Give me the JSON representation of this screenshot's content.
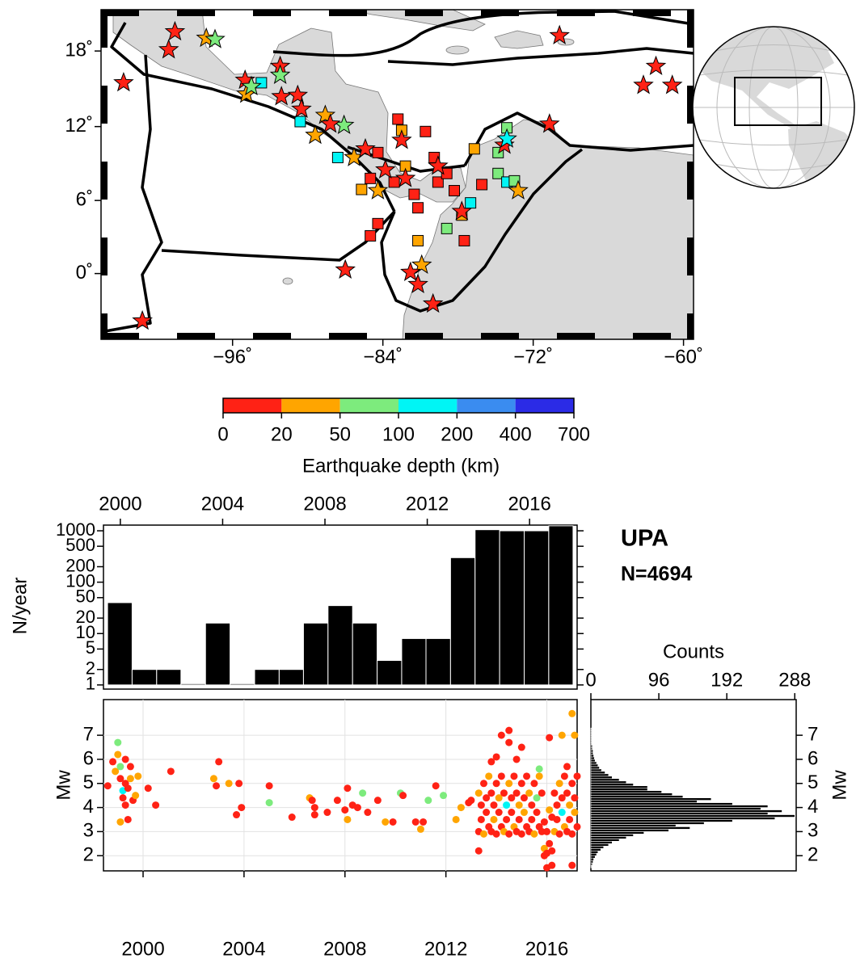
{
  "chart_data": [
    {
      "type": "map",
      "projection": "mercator",
      "xlim": [
        -106.5,
        -59.2
      ],
      "ylim": [
        -5.4,
        21.2
      ],
      "xticks": [
        {
          "value": -96,
          "label": "−96˚"
        },
        {
          "value": -84,
          "label": "−84˚"
        },
        {
          "value": -72,
          "label": "−72˚"
        },
        {
          "value": -60,
          "label": "−60˚"
        }
      ],
      "yticks": [
        {
          "value": 18,
          "label": "18˚"
        },
        {
          "value": 12,
          "label": "12˚"
        },
        {
          "value": 6,
          "label": "6˚"
        },
        {
          "value": 0,
          "label": "0˚"
        }
      ],
      "events": {
        "lon": [
          -100.6,
          -101.1,
          -98.1,
          -97.4,
          -104.7,
          -95.0,
          -94.9,
          -94.5,
          -92.2,
          -92.2,
          -92.1,
          -90.8,
          -90.5,
          -88.6,
          -87.1,
          -89.4,
          -88.2,
          -86.3,
          -85.4,
          -83.8,
          -82.2,
          -84.4,
          -80.9,
          -81.8,
          -81.2,
          -80.0,
          -87.0,
          -103.2,
          -69.9,
          -70.7,
          -74.3,
          -74.1,
          -73.2,
          -63.2,
          -62.2,
          -60.9,
          -82.5,
          -79.6,
          -77.7,
          -93.7,
          -90.6,
          -87.6,
          -82.8,
          -82.5,
          -80.6,
          -85.7,
          -85.0,
          -84.4,
          -81.2,
          -78.9,
          -77.7,
          -77.0,
          -77.5,
          -76.1,
          -74.8,
          -74.1,
          -74.8,
          -74.1,
          -73.5,
          -81.2,
          -79.6,
          -78.3,
          -76.7,
          -84.4,
          -79.9,
          -82.2,
          -83.1,
          -85.0,
          -78.9,
          -81.5
        ],
        "lat": [
          19.5,
          18.1,
          19.0,
          18.9,
          15.5,
          15.7,
          14.6,
          15.2,
          16.8,
          16.1,
          14.4,
          14.5,
          13.4,
          12.9,
          12.1,
          11.3,
          12.2,
          9.5,
          10.2,
          8.5,
          7.8,
          6.8,
          0.7,
          0.1,
          -0.9,
          -2.5,
          0.3,
          -3.9,
          19.2,
          12.2,
          10.5,
          11.0,
          6.8,
          15.3,
          16.8,
          15.3,
          10.9,
          8.8,
          5.1,
          15.5,
          12.4,
          9.5,
          12.6,
          11.7,
          11.6,
          6.9,
          3.1,
          4.1,
          5.4,
          3.7,
          4.8,
          5.8,
          2.7,
          7.3,
          8.2,
          11.9,
          9.9,
          7.5,
          7.6,
          2.7,
          7.5,
          6.8,
          10.2,
          9.9,
          9.5,
          8.8,
          7.5,
          7.8,
          8.2,
          6.5
        ],
        "depth": [
          5,
          5,
          30,
          70,
          5,
          5,
          30,
          70,
          5,
          70,
          5,
          5,
          5,
          30,
          70,
          30,
          5,
          30,
          5,
          5,
          5,
          30,
          30,
          5,
          5,
          5,
          5,
          5,
          5,
          5,
          5,
          150,
          30,
          5,
          5,
          5,
          5,
          5,
          5,
          150,
          150,
          150,
          5,
          30,
          5,
          30,
          5,
          5,
          5,
          70,
          30,
          150,
          5,
          5,
          70,
          70,
          70,
          150,
          70,
          30,
          5,
          5,
          30,
          5,
          5,
          30,
          5,
          5,
          5,
          5
        ],
        "marker": [
          "star",
          "star",
          "star",
          "star",
          "star",
          "star",
          "star",
          "star",
          "star",
          "star",
          "star",
          "star",
          "star",
          "star",
          "star",
          "star",
          "star",
          "star",
          "star",
          "star",
          "star",
          "star",
          "star",
          "star",
          "star",
          "star",
          "star",
          "star",
          "star",
          "star",
          "star",
          "star",
          "star",
          "star",
          "star",
          "star",
          "star",
          "star",
          "star",
          "square",
          "square",
          "square",
          "square",
          "square",
          "square",
          "square",
          "square",
          "square",
          "square",
          "square",
          "square",
          "square",
          "square",
          "square",
          "square",
          "square",
          "square",
          "square",
          "square",
          "square",
          "square",
          "square",
          "square",
          "square",
          "square",
          "square",
          "square",
          "square",
          "square",
          "square"
        ]
      },
      "colorbar": {
        "boundaries": [
          0,
          20,
          50,
          100,
          200,
          400,
          700
        ],
        "colors": [
          "#ff2215",
          "#ffa500",
          "#7deb7d",
          "#00f5f5",
          "#3a8cf0",
          "#2b2be6"
        ],
        "label": "Earthquake depth (km)"
      }
    },
    {
      "type": "histogram",
      "scale": "log",
      "color": "#000000",
      "bins": [
        1999.5,
        2000.46,
        2001.42,
        2002.37,
        2003.33,
        2004.29,
        2005.25,
        2006.21,
        2007.16,
        2008.12,
        2009.08,
        2010.04,
        2011.0,
        2011.95,
        2012.91,
        2013.87,
        2014.83,
        2015.79,
        2016.75,
        2017.7
      ],
      "values": [
        40,
        2,
        2,
        1,
        16,
        1,
        2,
        2,
        16,
        35,
        16,
        3,
        8,
        8,
        300,
        1050,
        1000,
        1000,
        1250
      ],
      "xlim": [
        1999.34,
        2017.86
      ],
      "xticks": [
        2000,
        2004,
        2008,
        2012,
        2016
      ],
      "ylim": [
        0.83,
        1290
      ],
      "yticks": [
        1,
        2,
        5,
        10,
        20,
        50,
        100,
        200,
        500,
        1000
      ],
      "ylabel": "N/year",
      "annotations": [
        "UPA",
        "N=4694"
      ]
    },
    {
      "type": "scatter",
      "grid": true,
      "x": [
        1998.6,
        1998.8,
        1998.9,
        1999.0,
        1999.0,
        1999.1,
        1999.1,
        1999.2,
        1999.2,
        1999.3,
        1999.3,
        1999.1,
        1999.4,
        1999.4,
        1999.5,
        1999.6,
        1999.7,
        1999.8,
        1999.5,
        1999.3,
        2000.2,
        2000.5,
        2001.1,
        2002.8,
        2002.9,
        2003.0,
        2003.4,
        2003.7,
        2003.8,
        2003.9,
        2005.0,
        2005.0,
        2005.9,
        2006.6,
        2006.7,
        2006.8,
        2006.8,
        2007.3,
        2007.7,
        2008.0,
        2008.1,
        2008.1,
        2008.3,
        2008.5,
        2008.7,
        2008.9,
        2009.3,
        2009.6,
        2009.9,
        2010.2,
        2010.3,
        2010.8,
        2011.0,
        2011.1,
        2011.3,
        2011.6,
        2011.9,
        2012.4,
        2012.6,
        2012.9,
        2013.0,
        2013.3,
        2013.3,
        2013.4,
        2013.4,
        2013.5,
        2013.5,
        2013.6,
        2013.6,
        2013.7,
        2013.7,
        2013.8,
        2013.8,
        2013.9,
        2013.9,
        2014.0,
        2014.0,
        2014.1,
        2014.1,
        2014.2,
        2014.2,
        2014.3,
        2014.3,
        2014.4,
        2014.4,
        2014.5,
        2014.5,
        2014.6,
        2014.6,
        2014.7,
        2014.7,
        2014.8,
        2014.8,
        2014.9,
        2014.9,
        2015.0,
        2015.0,
        2015.1,
        2015.1,
        2015.2,
        2015.2,
        2015.3,
        2015.3,
        2015.4,
        2015.4,
        2015.5,
        2015.5,
        2015.6,
        2015.6,
        2015.7,
        2015.7,
        2015.8,
        2015.8,
        2015.9,
        2015.9,
        2016.0,
        2016.0,
        2016.1,
        2016.1,
        2016.2,
        2016.2,
        2016.3,
        2016.3,
        2016.4,
        2016.4,
        2016.5,
        2016.5,
        2016.6,
        2016.6,
        2016.7,
        2016.7,
        2016.8,
        2016.8,
        2016.9,
        2016.9,
        2017.0,
        2017.0,
        2017.1,
        2017.1,
        2017.2,
        2017.2,
        2014.2,
        2014.5,
        2014.5,
        2015.0,
        2014.8,
        2016.1,
        2016.6,
        2017.0,
        2017.1,
        2016.0,
        2016.2,
        2015.9,
        2013.3,
        2017.0,
        2013.8,
        2015.7,
        2016.8,
        2014.0
      ],
      "y": [
        4.9,
        5.9,
        5.5,
        6.2,
        6.7,
        5.7,
        5.2,
        4.7,
        4.4,
        5.0,
        4.1,
        3.4,
        3.5,
        4.8,
        5.2,
        4.3,
        4.5,
        5.3,
        5.7,
        6.0,
        4.8,
        4.1,
        5.5,
        5.2,
        4.9,
        5.9,
        5.0,
        3.7,
        5.0,
        4.0,
        4.9,
        4.2,
        3.6,
        4.4,
        4.3,
        4.0,
        3.7,
        3.8,
        4.3,
        3.9,
        4.8,
        3.5,
        4.1,
        4.0,
        4.6,
        3.8,
        4.3,
        3.4,
        3.4,
        4.6,
        4.5,
        3.4,
        3.1,
        3.4,
        4.3,
        4.9,
        4.5,
        3.5,
        4.0,
        4.2,
        4.3,
        3.0,
        4.6,
        3.5,
        4.1,
        2.9,
        5.0,
        3.8,
        4.4,
        3.2,
        5.3,
        3.0,
        4.6,
        3.5,
        4.1,
        2.9,
        5.0,
        3.8,
        4.4,
        3.2,
        5.3,
        3.0,
        4.6,
        3.5,
        4.1,
        2.9,
        5.0,
        3.8,
        4.4,
        3.2,
        5.3,
        3.0,
        4.6,
        3.5,
        4.1,
        2.9,
        5.0,
        3.8,
        4.4,
        3.2,
        5.3,
        3.0,
        4.6,
        3.5,
        4.1,
        2.9,
        5.0,
        3.8,
        4.4,
        3.2,
        5.3,
        3.0,
        4.6,
        2.3,
        3.4,
        2.1,
        3.0,
        2.5,
        3.9,
        2.2,
        3.6,
        3.0,
        4.6,
        3.5,
        4.1,
        2.9,
        5.0,
        3.8,
        4.4,
        3.2,
        5.3,
        3.0,
        4.6,
        3.5,
        4.1,
        2.9,
        5.0,
        3.8,
        4.4,
        3.2,
        5.3,
        7.0,
        7.2,
        6.7,
        6.5,
        6.0,
        6.9,
        7.0,
        7.9,
        7.0,
        1.5,
        1.6,
        2.0,
        2.2,
        1.6,
        5.9,
        5.6,
        5.7,
        6.1
      ],
      "depth": [
        5,
        5,
        30,
        30,
        70,
        70,
        5,
        150,
        5,
        5,
        5,
        30,
        5,
        5,
        30,
        5,
        30,
        30,
        5,
        5,
        5,
        5,
        5,
        30,
        5,
        5,
        30,
        5,
        5,
        5,
        5,
        70,
        5,
        30,
        5,
        5,
        5,
        5,
        5,
        5,
        5,
        30,
        5,
        5,
        70,
        5,
        5,
        30,
        5,
        70,
        5,
        5,
        30,
        5,
        70,
        5,
        70,
        30,
        30,
        5,
        5,
        5,
        30,
        5,
        5,
        30,
        5,
        5,
        5,
        5,
        30,
        5,
        5,
        30,
        5,
        5,
        5,
        5,
        30,
        5,
        5,
        30,
        5,
        5,
        150,
        5,
        30,
        5,
        5,
        30,
        5,
        5,
        5,
        5,
        30,
        5,
        5,
        30,
        5,
        5,
        5,
        5,
        30,
        5,
        5,
        30,
        5,
        5,
        70,
        5,
        30,
        5,
        5,
        30,
        5,
        5,
        5,
        5,
        30,
        5,
        5,
        30,
        5,
        5,
        5,
        5,
        30,
        150,
        5,
        30,
        5,
        5,
        5,
        5,
        30,
        5,
        5,
        30,
        5,
        5,
        5,
        5,
        5,
        5,
        5,
        5,
        5,
        30,
        30,
        30,
        5,
        5,
        5,
        5,
        5,
        5,
        70,
        5,
        5
      ],
      "xlim": [
        1998.43,
        2017.2
      ],
      "xticks": [
        2000,
        2004,
        2008,
        2012,
        2016
      ],
      "ylim": [
        1.37,
        8.48
      ],
      "yticks": [
        2,
        3,
        4,
        5,
        6,
        7
      ],
      "ylabel": "Mw"
    },
    {
      "type": "histogram",
      "orientation": "horizontal",
      "color": "#000000",
      "bins": [
        1.5,
        1.6,
        1.7,
        1.8,
        1.9,
        2.0,
        2.1,
        2.2,
        2.3,
        2.4,
        2.5,
        2.6,
        2.7,
        2.8,
        2.9,
        3.0,
        3.1,
        3.2,
        3.3,
        3.4,
        3.5,
        3.6,
        3.7,
        3.8,
        3.9,
        4.0,
        4.1,
        4.2,
        4.3,
        4.4,
        4.5,
        4.6,
        4.7,
        4.8,
        4.9,
        5.0,
        5.1,
        5.2,
        5.3,
        5.4,
        5.5,
        5.6,
        5.7,
        5.8,
        5.9,
        6.0,
        6.1,
        6.2,
        6.3,
        6.4,
        6.5,
        6.6,
        6.7,
        6.8,
        6.9,
        7.0,
        7.1,
        7.2,
        7.3
      ],
      "values": [
        1,
        2,
        3,
        4,
        6,
        8,
        10,
        14,
        18,
        25,
        30,
        40,
        50,
        60,
        75,
        110,
        140,
        120,
        160,
        200,
        260,
        288,
        250,
        270,
        240,
        250,
        200,
        150,
        170,
        130,
        115,
        100,
        80,
        80,
        60,
        50,
        40,
        30,
        25,
        20,
        15,
        12,
        10,
        8,
        6,
        5,
        4,
        3,
        3,
        2,
        2,
        1,
        1,
        1,
        1,
        1,
        1,
        1
      ],
      "xlim": [
        0,
        290
      ],
      "xticks": [
        0,
        96,
        192,
        288
      ],
      "xlabel": "Counts",
      "ylim": [
        1.37,
        8.48
      ],
      "yticks": [
        2,
        3,
        4,
        5,
        6,
        7
      ],
      "ylabel": "Mw"
    }
  ]
}
